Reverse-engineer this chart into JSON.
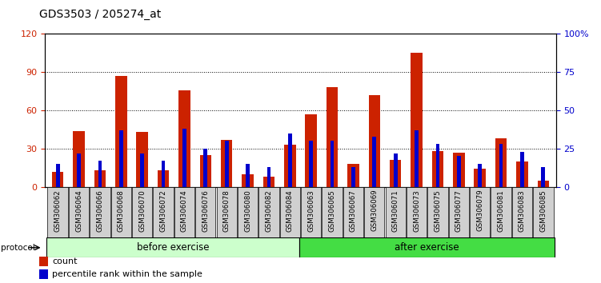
{
  "title": "GDS3503 / 205274_at",
  "samples": [
    "GSM306062",
    "GSM306064",
    "GSM306066",
    "GSM306068",
    "GSM306070",
    "GSM306072",
    "GSM306074",
    "GSM306076",
    "GSM306078",
    "GSM306080",
    "GSM306082",
    "GSM306084",
    "GSM306063",
    "GSM306065",
    "GSM306067",
    "GSM306069",
    "GSM306071",
    "GSM306073",
    "GSM306075",
    "GSM306077",
    "GSM306079",
    "GSM306081",
    "GSM306083",
    "GSM306085"
  ],
  "count_values": [
    12,
    44,
    13,
    87,
    43,
    13,
    76,
    25,
    37,
    10,
    8,
    33,
    57,
    78,
    18,
    72,
    21,
    105,
    28,
    27,
    14,
    38,
    20,
    5
  ],
  "percentile_values": [
    15,
    22,
    17,
    37,
    22,
    17,
    38,
    25,
    30,
    15,
    13,
    35,
    30,
    30,
    13,
    33,
    22,
    37,
    28,
    20,
    15,
    28,
    23,
    13
  ],
  "before_count": 12,
  "after_count": 12,
  "before_label": "before exercise",
  "after_label": "after exercise",
  "protocol_label": "protocol",
  "left_yticks": [
    0,
    30,
    60,
    90,
    120
  ],
  "right_yticks": [
    0,
    25,
    50,
    75,
    100
  ],
  "right_ytick_labels": [
    "0",
    "25",
    "50",
    "75",
    "100%"
  ],
  "ylim_left": [
    0,
    120
  ],
  "ylim_right": [
    0,
    100
  ],
  "count_color": "#cc2200",
  "percentile_color": "#0000cc",
  "before_bg": "#ccffcc",
  "after_bg": "#44dd44",
  "sample_bg": "#d0d0d0",
  "bar_width": 0.55
}
